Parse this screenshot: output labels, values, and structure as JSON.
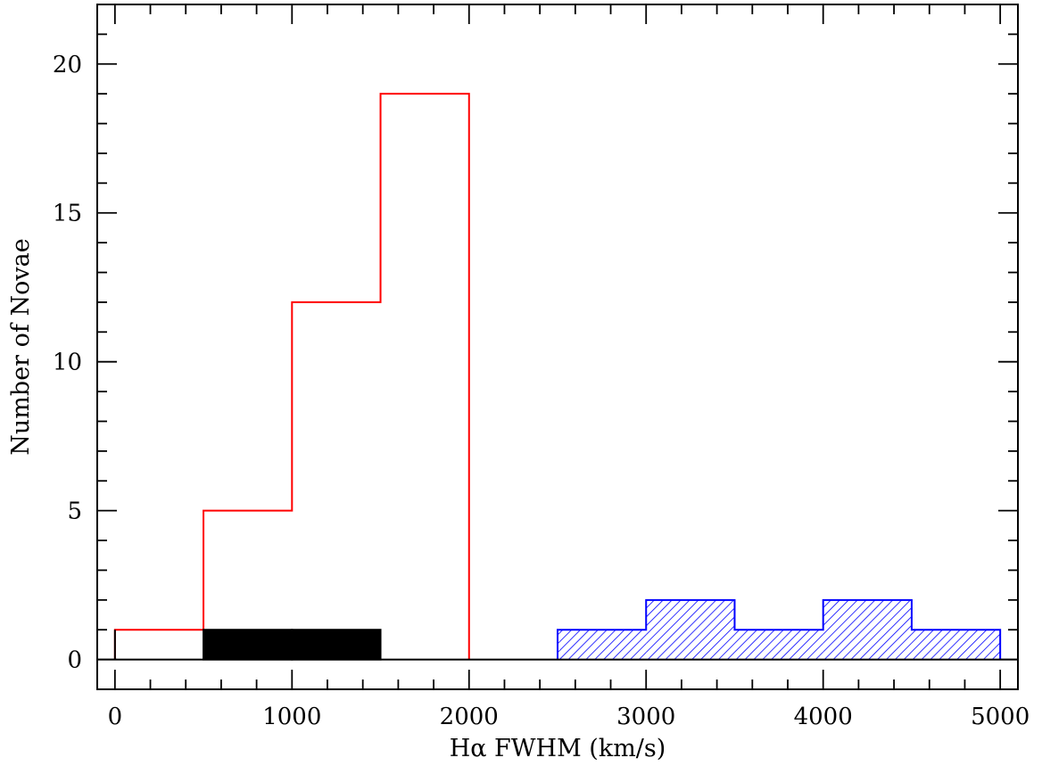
{
  "chart_data": {
    "type": "histogram",
    "xlabel": "Hα FWHM (km/s)",
    "ylabel": "Number of Novae",
    "xlim": [
      -100,
      5100
    ],
    "ylim": [
      -1,
      22
    ],
    "x_ticks": [
      0,
      1000,
      2000,
      3000,
      4000,
      5000
    ],
    "x_tick_labels": [
      "0",
      "1000",
      "2000",
      "3000",
      "4000",
      "5000"
    ],
    "y_ticks": [
      0,
      5,
      10,
      15,
      20
    ],
    "y_tick_labels": [
      "0",
      "5",
      "10",
      "15",
      "20"
    ],
    "bin_width": 500,
    "series": [
      {
        "style": "step-outline",
        "color": "#ff0000",
        "bins": [
          {
            "x0": 0,
            "x1": 500,
            "count": 1
          },
          {
            "x0": 500,
            "x1": 1000,
            "count": 5
          },
          {
            "x0": 1000,
            "x1": 1500,
            "count": 12
          },
          {
            "x0": 1500,
            "x1": 2000,
            "count": 19
          }
        ]
      },
      {
        "style": "solid-fill",
        "color": "#000000",
        "bins": [
          {
            "x0": 500,
            "x1": 1000,
            "count": 1
          },
          {
            "x0": 1000,
            "x1": 1500,
            "count": 1
          }
        ]
      },
      {
        "style": "hatched",
        "color": "#0000ff",
        "bins": [
          {
            "x0": 2500,
            "x1": 3000,
            "count": 1
          },
          {
            "x0": 3000,
            "x1": 3500,
            "count": 2
          },
          {
            "x0": 3500,
            "x1": 4000,
            "count": 1
          },
          {
            "x0": 4000,
            "x1": 4500,
            "count": 2
          },
          {
            "x0": 4500,
            "x1": 5000,
            "count": 1
          }
        ]
      }
    ],
    "grid": false,
    "legend": "none"
  }
}
